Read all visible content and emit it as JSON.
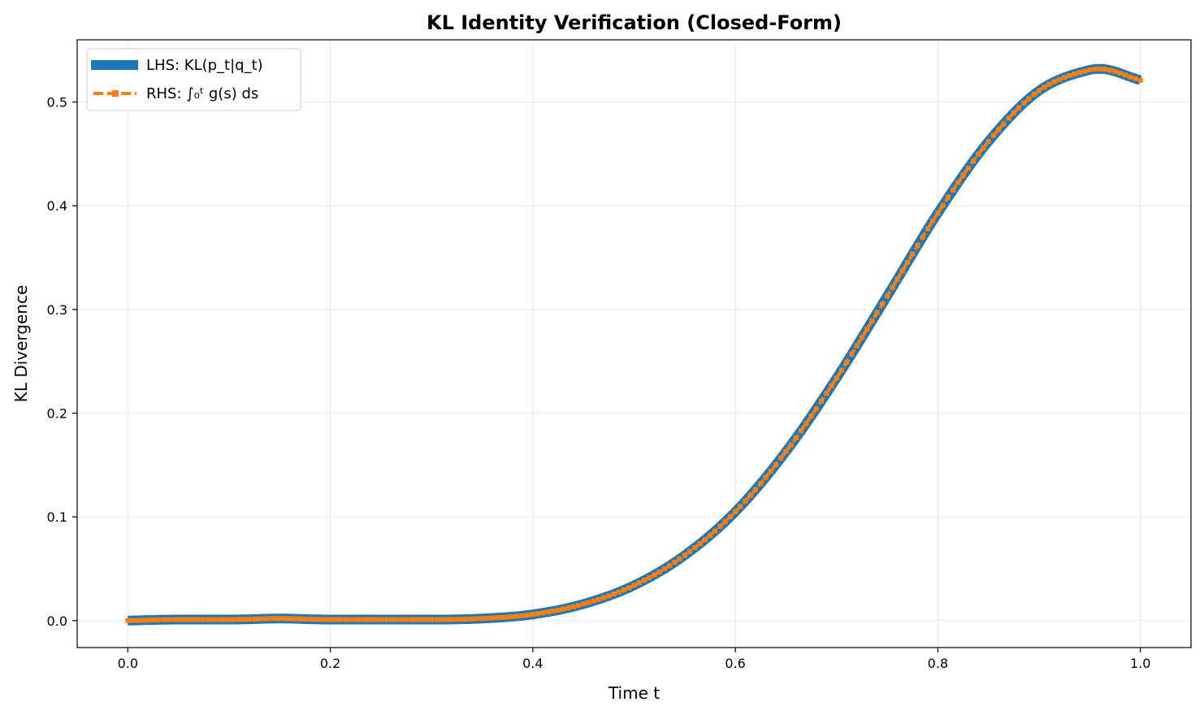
{
  "chart_data": {
    "type": "line",
    "title": "KL Identity Verification (Closed-Form)",
    "xlabel": "Time t",
    "ylabel": "KL Divergence",
    "xlim": [
      -0.05,
      1.05
    ],
    "ylim": [
      -0.026,
      0.56
    ],
    "xticks": [
      0.0,
      0.2,
      0.4,
      0.6,
      0.8,
      1.0
    ],
    "xtick_labels": [
      "0.0",
      "0.2",
      "0.4",
      "0.6",
      "0.8",
      "1.0"
    ],
    "yticks": [
      0.0,
      0.1,
      0.2,
      0.3,
      0.4,
      0.5
    ],
    "ytick_labels": [
      "0.0",
      "0.1",
      "0.2",
      "0.3",
      "0.4",
      "0.5"
    ],
    "grid": true,
    "legend_position": "upper-left",
    "x": [
      0.0,
      0.05,
      0.1,
      0.15,
      0.2,
      0.25,
      0.3,
      0.35,
      0.4,
      0.45,
      0.5,
      0.55,
      0.6,
      0.65,
      0.7,
      0.75,
      0.8,
      0.85,
      0.9,
      0.95,
      0.96,
      1.0
    ],
    "series": [
      {
        "name": "LHS: KL(p_t|q_t)",
        "color": "#1f77b4",
        "style": "solid-thick",
        "values": [
          0.0,
          0.001,
          0.001,
          0.002,
          0.001,
          0.001,
          0.001,
          0.002,
          0.006,
          0.016,
          0.034,
          0.063,
          0.105,
          0.163,
          0.234,
          0.313,
          0.393,
          0.462,
          0.511,
          0.531,
          0.532,
          0.521
        ]
      },
      {
        "name": "RHS: ∫₀ᵗ g(s) ds",
        "color": "#ff7f0e",
        "style": "dashed-square-markers",
        "values": [
          0.0,
          0.001,
          0.001,
          0.002,
          0.001,
          0.001,
          0.001,
          0.002,
          0.006,
          0.016,
          0.034,
          0.063,
          0.105,
          0.163,
          0.234,
          0.313,
          0.393,
          0.462,
          0.511,
          0.531,
          0.532,
          0.521
        ]
      }
    ]
  }
}
